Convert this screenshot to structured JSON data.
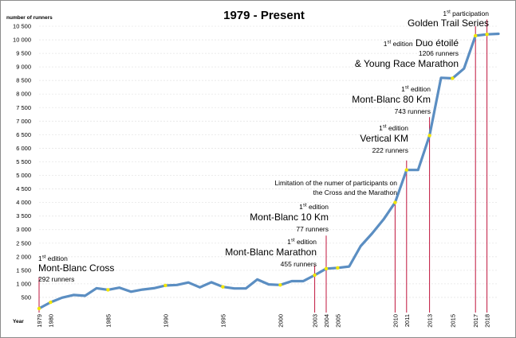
{
  "chart_data": {
    "type": "line",
    "title": "1979 - Present",
    "ylabel": "number of runners",
    "xlabel": "Year",
    "ylim": [
      0,
      10500
    ],
    "y_ticks": [
      "500",
      "1 000",
      "1 500",
      "2 000",
      "2 500",
      "3 000",
      "3 500",
      "4 000",
      "4 500",
      "5 000",
      "5 500",
      "6 000",
      "6 500",
      "7 000",
      "7 500",
      "8 000",
      "8 500",
      "9 000",
      "9 500",
      "10 000",
      "10 500"
    ],
    "x_tick_labels": [
      "1979",
      "1980",
      "1985",
      "1990",
      "1995",
      "2000",
      "2003",
      "2004",
      "2005",
      "2010",
      "2011",
      "2013",
      "2015",
      "2017",
      "2018"
    ],
    "grid": "horizontal",
    "series": [
      {
        "color": "#5b8ec2",
        "x": [
          1979,
          1980,
          1981,
          1982,
          1983,
          1984,
          1985,
          1986,
          1987,
          1988,
          1989,
          1990,
          1991,
          1992,
          1993,
          1994,
          1995,
          1996,
          1997,
          1998,
          1999,
          2000,
          2001,
          2002,
          2003,
          2004,
          2005,
          2006,
          2007,
          2008,
          2009,
          2010,
          2011,
          2012,
          2013,
          2014,
          2015,
          2016,
          2017,
          2018,
          2019
        ],
        "y": [
          90,
          320,
          490,
          590,
          560,
          840,
          780,
          860,
          710,
          790,
          840,
          940,
          960,
          1050,
          870,
          1060,
          890,
          830,
          830,
          1160,
          980,
          960,
          1100,
          1100,
          1320,
          1560,
          1590,
          1640,
          2390,
          2860,
          3380,
          4000,
          5200,
          5200,
          6470,
          8600,
          8580,
          8940,
          10150,
          10200,
          10220
        ]
      }
    ],
    "markers": {
      "color": "#f2e600",
      "x": [
        1979,
        1980,
        1985,
        1990,
        1995,
        2000,
        2003,
        2004,
        2005,
        2010,
        2011,
        2013,
        2015,
        2017,
        2018
      ]
    },
    "event_lines": {
      "color": "#c0143c",
      "lines": [
        {
          "x": 1979,
          "to": 1250
        },
        {
          "x": 2003,
          "to": 1680
        },
        {
          "x": 2004,
          "to": 2780
        },
        {
          "x": 2010,
          "to": 4050
        },
        {
          "x": 2011,
          "to": 5550
        },
        {
          "x": 2013,
          "to": 7150
        },
        {
          "x": 2017,
          "to": 10500
        },
        {
          "x": 2018,
          "to": 10750
        }
      ]
    },
    "annotations": [
      {
        "id": "mbc",
        "sup": "st",
        "lines": [
          {
            "pre": "1",
            "text": " edition",
            "size": "small"
          },
          {
            "text": "Mont-Blanc Cross",
            "size": "big"
          },
          {
            "text": "292 runners",
            "size": "small"
          }
        ]
      },
      {
        "id": "mbm",
        "sup": "st",
        "lines": [
          {
            "pre": "1",
            "text": " edition",
            "size": "small"
          },
          {
            "text": "Mont-Blanc Marathon",
            "size": "big"
          },
          {
            "text": "455 runners",
            "size": "small"
          }
        ]
      },
      {
        "id": "mb10",
        "sup": "st",
        "lines": [
          {
            "pre": "1",
            "text": " edition",
            "size": "small"
          },
          {
            "text": "Mont-Blanc 10 Km",
            "size": "big"
          },
          {
            "text": "77 runners",
            "size": "small"
          }
        ]
      },
      {
        "id": "limit",
        "lines": [
          {
            "text": "Limitation of the numer of participants on",
            "size": "small"
          },
          {
            "text": "the Cross and the Marathon",
            "size": "small"
          }
        ]
      },
      {
        "id": "vk",
        "sup": "st",
        "lines": [
          {
            "pre": "1",
            "text": " edition",
            "size": "small"
          },
          {
            "text": "Vertical KM",
            "size": "big"
          },
          {
            "text": "222 runners",
            "size": "small"
          }
        ]
      },
      {
        "id": "mb80",
        "sup": "st",
        "lines": [
          {
            "pre": "1",
            "text": " edition",
            "size": "small"
          },
          {
            "text": "Mont-Blanc 80 Km",
            "size": "big"
          },
          {
            "text": "743 runners",
            "size": "small"
          }
        ]
      },
      {
        "id": "duo",
        "sup": "st",
        "lines": [
          {
            "pre": "1",
            "text": " edition",
            "size": "small",
            "inline_big": " Duo étoilé"
          },
          {
            "text": "1206 runners",
            "size": "small"
          },
          {
            "text": "& Young Race Marathon",
            "size": "big"
          }
        ]
      },
      {
        "id": "gts",
        "sup": "st",
        "lines": [
          {
            "pre": "1",
            "text": " participation",
            "size": "small"
          },
          {
            "text": "Golden Trail Series",
            "size": "big"
          }
        ]
      }
    ]
  }
}
